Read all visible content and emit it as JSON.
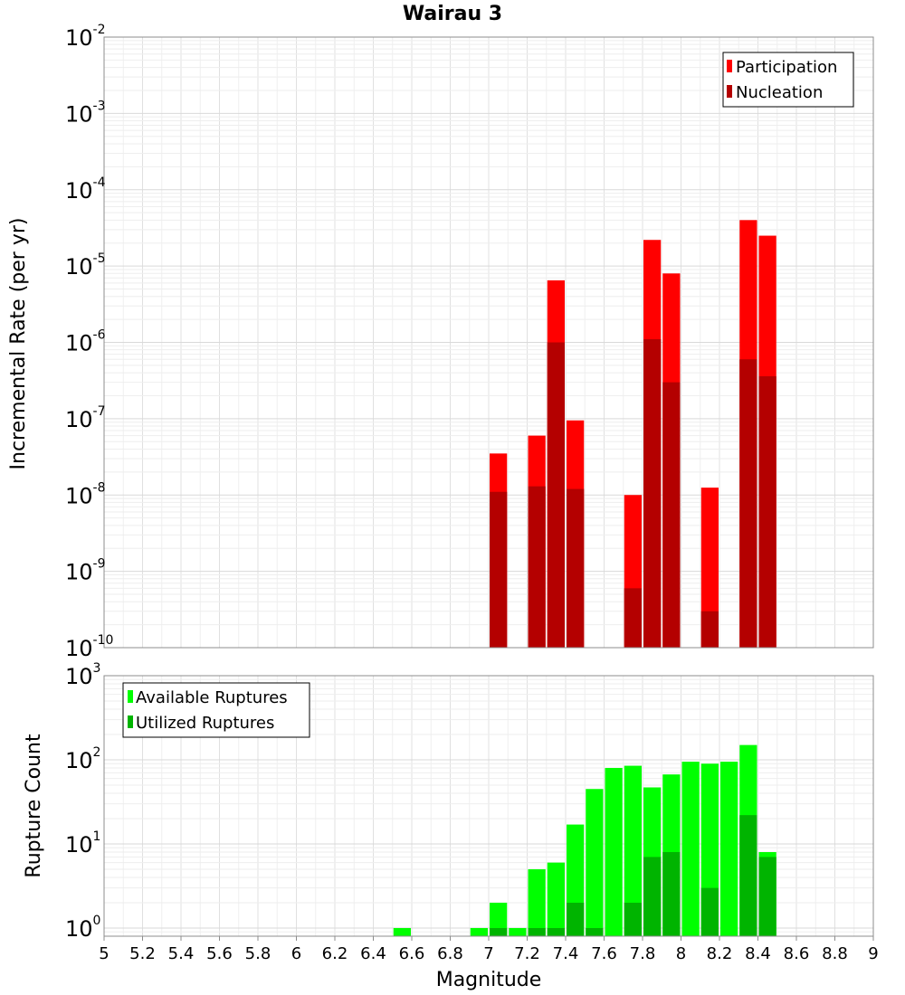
{
  "chart_data": [
    {
      "type": "bar",
      "title": "Wairau 3",
      "xlabel": "",
      "ylabel": "Incremental Rate (per yr)",
      "ylog": true,
      "ylim": [
        1e-10,
        0.01
      ],
      "xlim": [
        5,
        9
      ],
      "grid": true,
      "legend_position": "top-right",
      "x": [
        7.05,
        7.25,
        7.35,
        7.45,
        7.75,
        7.85,
        7.95,
        8.15,
        8.35,
        8.45
      ],
      "series": [
        {
          "name": "Participation",
          "color": "#ff0000",
          "values": [
            3.5e-08,
            6e-08,
            6.5e-06,
            9.5e-08,
            1e-08,
            2.2e-05,
            8e-06,
            1.25e-08,
            4e-05,
            2.5e-05
          ]
        },
        {
          "name": "Nucleation",
          "color": "#b40000",
          "values": [
            1.1e-08,
            1.3e-08,
            1e-06,
            1.2e-08,
            6e-10,
            1.1e-06,
            3e-07,
            3e-10,
            6e-07,
            3.6e-07
          ]
        }
      ]
    },
    {
      "type": "bar",
      "title": "",
      "xlabel": "Magnitude",
      "ylabel": "Rupture Count",
      "ylog": true,
      "ylim": [
        0.8,
        1000
      ],
      "xlim": [
        5,
        9
      ],
      "grid": true,
      "legend_position": "top-left",
      "x": [
        6.55,
        6.95,
        7.05,
        7.15,
        7.25,
        7.35,
        7.45,
        7.55,
        7.65,
        7.75,
        7.85,
        7.95,
        8.05,
        8.15,
        8.25,
        8.35,
        8.45
      ],
      "series": [
        {
          "name": "Available Ruptures",
          "color": "#00ff00",
          "values": [
            1,
            1,
            2,
            1,
            5,
            6,
            17,
            45,
            80,
            85,
            47,
            67,
            95,
            90,
            95,
            150,
            8
          ]
        },
        {
          "name": "Utilized Ruptures",
          "color": "#00b400",
          "values": [
            null,
            null,
            1,
            null,
            1,
            1,
            2,
            1,
            null,
            2,
            7,
            8,
            null,
            3,
            null,
            22,
            7
          ]
        }
      ]
    }
  ],
  "x_ticks": [
    "5",
    "5.2",
    "5.4",
    "5.6",
    "5.8",
    "6",
    "6.2",
    "6.4",
    "6.6",
    "6.8",
    "7",
    "7.2",
    "7.4",
    "7.6",
    "7.8",
    "8",
    "8.2",
    "8.4",
    "8.6",
    "8.8",
    "9"
  ],
  "top_y_ticks": [
    {
      "base": "10",
      "exp": "-2"
    },
    {
      "base": "10",
      "exp": "-3"
    },
    {
      "base": "10",
      "exp": "-4"
    },
    {
      "base": "10",
      "exp": "-5"
    },
    {
      "base": "10",
      "exp": "-6"
    },
    {
      "base": "10",
      "exp": "-7"
    },
    {
      "base": "10",
      "exp": "-8"
    },
    {
      "base": "10",
      "exp": "-9"
    },
    {
      "base": "10",
      "exp": "-10"
    }
  ],
  "bottom_y_ticks": [
    {
      "base": "10",
      "exp": "3"
    },
    {
      "base": "10",
      "exp": "2"
    },
    {
      "base": "10",
      "exp": "1"
    },
    {
      "base": "10",
      "exp": "0"
    }
  ]
}
